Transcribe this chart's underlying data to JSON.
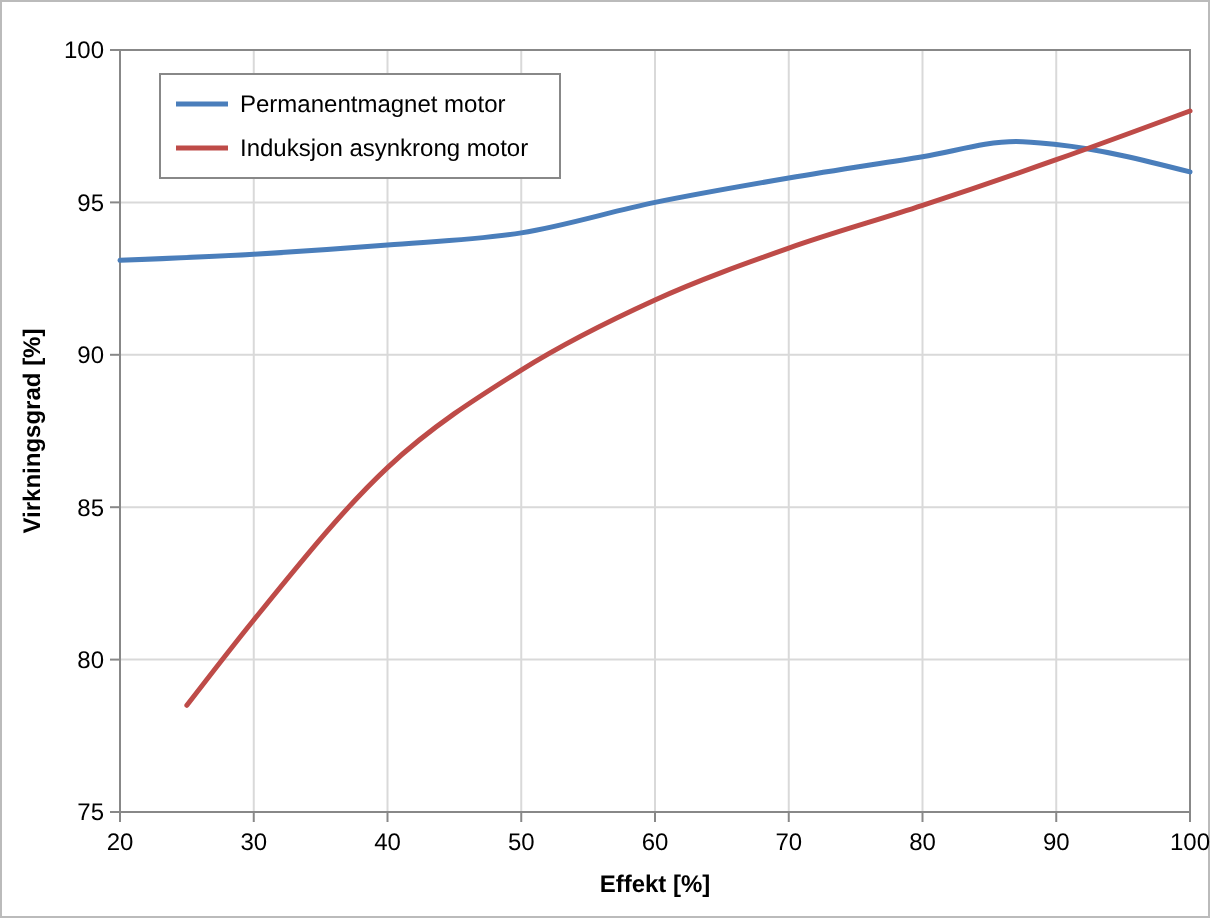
{
  "chart_data": {
    "type": "line",
    "xlabel": "Effekt [%]",
    "ylabel": "Virkningsgrad [%]",
    "xlim": [
      20,
      100
    ],
    "xticks": [
      20,
      30,
      40,
      50,
      60,
      70,
      80,
      90,
      100
    ],
    "ylim": [
      75,
      100
    ],
    "yticks": [
      75,
      80,
      85,
      90,
      95,
      100
    ],
    "grid": true,
    "legend": "top left",
    "marker": "none",
    "line_style": "solid",
    "series": [
      {
        "name": "Permanentmagnet motor",
        "color": "#4a7ebb",
        "x": [
          20,
          30,
          40,
          50,
          60,
          70,
          80,
          87,
          90,
          100
        ],
        "values": [
          93.1,
          93.3,
          93.6,
          94.0,
          95.0,
          95.8,
          96.5,
          97.0,
          96.9,
          96.0
        ]
      },
      {
        "name": "Induksjon asynkrong motor",
        "color": "#be4b48",
        "x": [
          25,
          30,
          40,
          50,
          60,
          70,
          80,
          90,
          100
        ],
        "values": [
          78.5,
          81.3,
          86.3,
          89.5,
          91.8,
          93.5,
          94.9,
          96.4,
          98.0
        ]
      }
    ]
  }
}
